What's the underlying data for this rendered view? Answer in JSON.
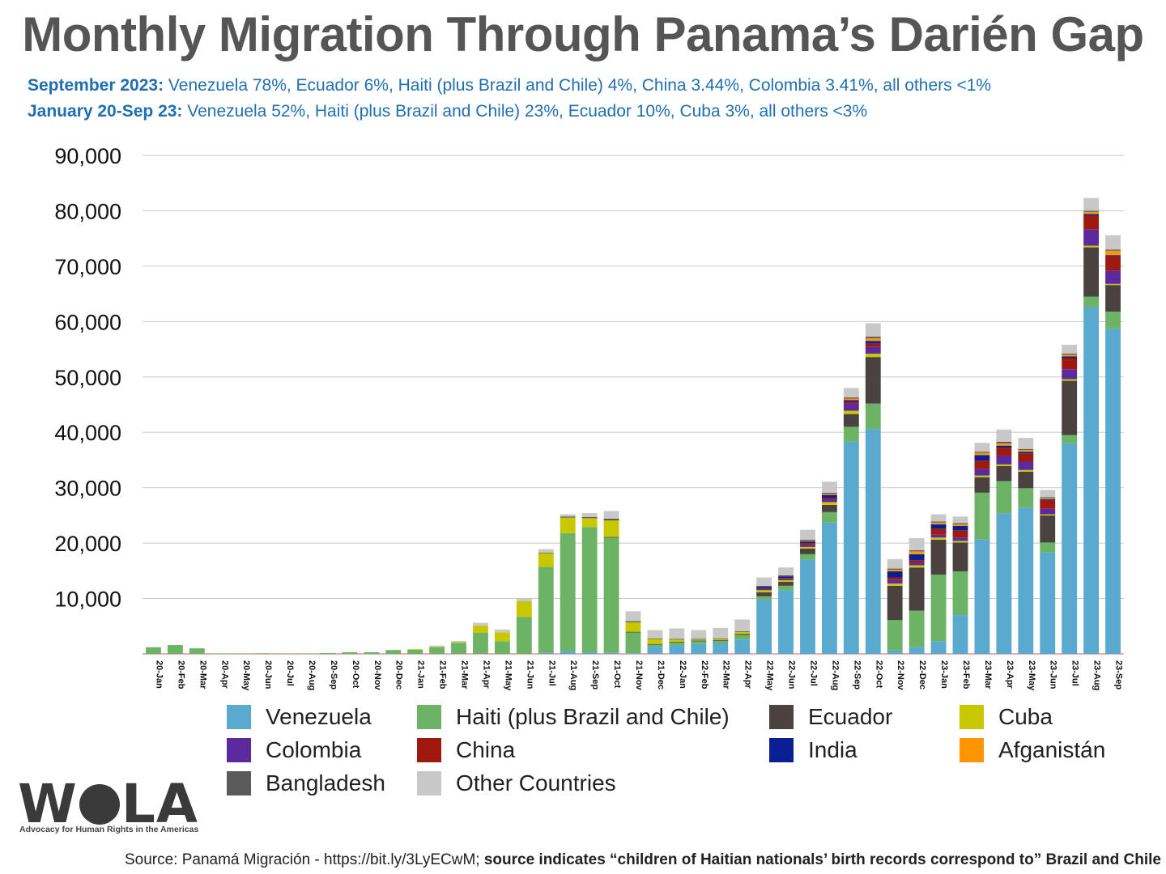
{
  "title": "Monthly Migration Through Panama’s Darién Gap",
  "subtitles": [
    {
      "label": "September 2023:",
      "text": " Venezuela 78%, Ecuador 6%, Haiti (plus Brazil and Chile) 4%, China 3.44%, Colombia 3.41%, all others <1%"
    },
    {
      "label": "January 20-Sep 23:",
      "text": " Venezuela 52%, Haiti (plus Brazil and Chile) 23%, Ecuador 10%, Cuba 3%, all others <3%"
    }
  ],
  "source": {
    "plain": "Source: Panamá Migración - https://bit.ly/3LyECwM; ",
    "bold": "source indicates “children of Haitian nationals’ birth records correspond to” Brazil and Chile"
  },
  "logo": {
    "text": "WOLA",
    "tagline": "Advocacy for Human Rights in the Americas"
  },
  "chart_data": {
    "type": "bar",
    "stacked": true,
    "ylim": [
      0,
      90000
    ],
    "yticks": [
      10000,
      20000,
      30000,
      40000,
      50000,
      60000,
      70000,
      80000,
      90000
    ],
    "ytick_labels": [
      "10,000",
      "20,000",
      "30,000",
      "40,000",
      "50,000",
      "60,000",
      "70,000",
      "80,000",
      "90,000"
    ],
    "legend_position": "bottom",
    "categories": [
      "20-Jan",
      "20-Feb",
      "20-Mar",
      "20-Apr",
      "20-May",
      "20-Jun",
      "20-Jul",
      "20-Aug",
      "20-Sep",
      "20-Oct",
      "20-Nov",
      "20-Dec",
      "21-Jan",
      "21-Feb",
      "21-Mar",
      "21-Apr",
      "21-May",
      "21-Jun",
      "21-Jul",
      "21-Aug",
      "21-Sep",
      "21-Oct",
      "21-Nov",
      "21-Dec",
      "22-Jan",
      "22-Feb",
      "22-Mar",
      "22-Apr",
      "22-May",
      "22-Jun",
      "22-Jul",
      "22-Aug",
      "22-Sep",
      "22-Oct",
      "22-Nov",
      "22-Dec",
      "23-Jan",
      "23-Feb",
      "23-Mar",
      "23-Apr",
      "23-May",
      "23-Jun",
      "23-Jul",
      "23-Aug",
      "23-Sep"
    ],
    "series": [
      {
        "name": "Venezuela",
        "color": "#5aa9cf",
        "values": [
          0,
          0,
          0,
          0,
          0,
          0,
          0,
          0,
          0,
          0,
          0,
          0,
          0,
          0,
          0,
          0,
          0,
          0,
          200,
          500,
          300,
          200,
          100,
          1300,
          1600,
          1800,
          1900,
          2600,
          9800,
          11500,
          17000,
          23700,
          38300,
          40600,
          600,
          1200,
          2300,
          7000,
          20700,
          25400,
          26400,
          18300,
          38000,
          62600,
          58700
        ]
      },
      {
        "name": "Haiti (plus Brazil and Chile)",
        "color": "#6db365",
        "values": [
          1200,
          1600,
          1000,
          50,
          50,
          100,
          50,
          50,
          150,
          300,
          300,
          700,
          800,
          1200,
          2000,
          3800,
          2300,
          6700,
          15500,
          21300,
          22600,
          20800,
          3800,
          400,
          500,
          500,
          500,
          800,
          600,
          800,
          1000,
          1900,
          2700,
          4600,
          5500,
          6600,
          12000,
          7900,
          8400,
          5800,
          3500,
          1800,
          1500,
          1900,
          3100
        ]
      },
      {
        "name": "Ecuador",
        "color": "#4a4141",
        "values": [
          0,
          0,
          0,
          0,
          0,
          0,
          0,
          0,
          0,
          0,
          0,
          0,
          0,
          0,
          0,
          0,
          0,
          0,
          0,
          0,
          0,
          100,
          100,
          100,
          100,
          100,
          100,
          200,
          700,
          700,
          1000,
          1300,
          2300,
          8400,
          6200,
          7800,
          6300,
          5200,
          2800,
          2700,
          3000,
          4900,
          9800,
          8900,
          4800
        ]
      },
      {
        "name": "Cuba",
        "color": "#c9c800",
        "values": [
          0,
          0,
          0,
          0,
          0,
          0,
          0,
          0,
          0,
          0,
          0,
          0,
          50,
          100,
          150,
          1300,
          1600,
          2800,
          2500,
          2800,
          1600,
          3000,
          1700,
          900,
          400,
          200,
          200,
          400,
          400,
          300,
          300,
          500,
          600,
          600,
          400,
          400,
          400,
          300,
          300,
          300,
          300,
          200,
          300,
          300,
          200
        ]
      },
      {
        "name": "Colombia",
        "color": "#5c2a9d",
        "values": [
          0,
          0,
          0,
          0,
          0,
          0,
          0,
          0,
          0,
          0,
          0,
          0,
          0,
          0,
          0,
          0,
          0,
          0,
          0,
          0,
          0,
          0,
          0,
          0,
          0,
          0,
          0,
          0,
          200,
          200,
          400,
          500,
          1300,
          1200,
          700,
          500,
          500,
          600,
          1200,
          1600,
          1500,
          1000,
          1800,
          2900,
          2400
        ]
      },
      {
        "name": "China",
        "color": "#9e1a0f",
        "values": [
          0,
          0,
          0,
          0,
          0,
          0,
          0,
          0,
          0,
          0,
          0,
          0,
          0,
          0,
          0,
          0,
          0,
          0,
          0,
          0,
          0,
          0,
          0,
          0,
          0,
          0,
          0,
          0,
          100,
          200,
          300,
          300,
          300,
          600,
          400,
          400,
          1100,
          1300,
          1500,
          1400,
          1500,
          1500,
          2000,
          2500,
          2600
        ]
      },
      {
        "name": "India",
        "color": "#0a1f94",
        "values": [
          0,
          0,
          0,
          0,
          0,
          0,
          0,
          0,
          0,
          0,
          0,
          0,
          0,
          0,
          0,
          0,
          0,
          0,
          0,
          0,
          0,
          0,
          0,
          0,
          0,
          0,
          0,
          0,
          300,
          300,
          300,
          500,
          300,
          500,
          1100,
          1100,
          800,
          800,
          1000,
          400,
          300,
          200,
          300,
          300,
          200
        ]
      },
      {
        "name": "Afganistán",
        "color": "#ff9500",
        "values": [
          0,
          0,
          0,
          0,
          0,
          0,
          0,
          0,
          0,
          0,
          0,
          0,
          0,
          0,
          0,
          0,
          0,
          0,
          0,
          0,
          0,
          0,
          0,
          0,
          0,
          0,
          0,
          0,
          0,
          0,
          100,
          200,
          300,
          500,
          300,
          500,
          300,
          300,
          400,
          400,
          300,
          200,
          300,
          400,
          800
        ]
      },
      {
        "name": "Bangladesh",
        "color": "#5b5b5b",
        "values": [
          0,
          0,
          0,
          0,
          0,
          0,
          0,
          0,
          0,
          0,
          0,
          0,
          0,
          0,
          0,
          0,
          0,
          0,
          100,
          200,
          200,
          300,
          200,
          100,
          100,
          100,
          100,
          100,
          200,
          200,
          200,
          200,
          200,
          300,
          200,
          200,
          200,
          200,
          200,
          300,
          200,
          200,
          200,
          200,
          200
        ]
      },
      {
        "name": "Other Countries",
        "color": "#c8c8c8",
        "values": [
          0,
          0,
          0,
          0,
          0,
          0,
          0,
          0,
          0,
          0,
          0,
          0,
          0,
          200,
          200,
          500,
          500,
          600,
          600,
          400,
          700,
          1400,
          1800,
          1500,
          1900,
          1600,
          1900,
          2100,
          1500,
          1400,
          1800,
          2000,
          1700,
          2400,
          1700,
          2200,
          1300,
          1200,
          1600,
          2200,
          2000,
          1300,
          1600,
          2300,
          2600
        ]
      }
    ]
  }
}
